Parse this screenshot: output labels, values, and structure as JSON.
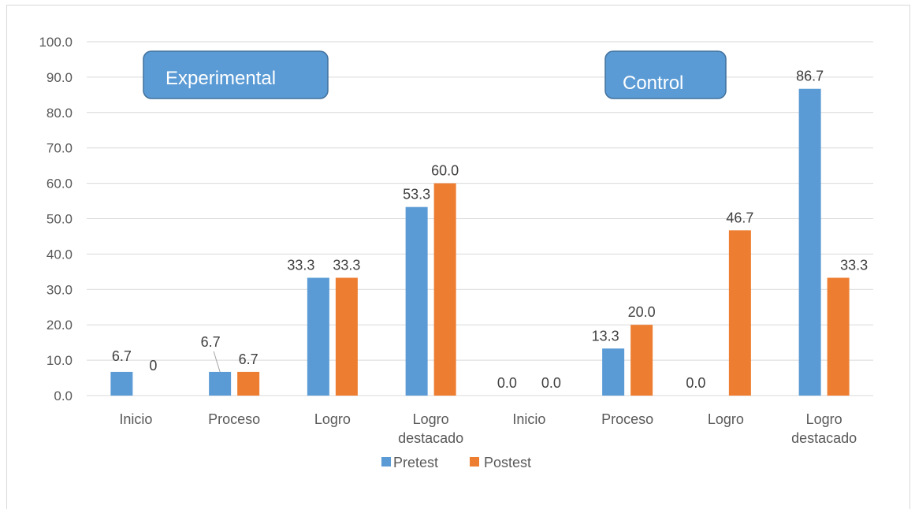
{
  "chart_data": {
    "type": "bar",
    "categories": [
      "Inicio",
      "Proceso",
      "Logro",
      "Logro destacado",
      "Inicio",
      "Proceso",
      "Logro",
      "Logro destacado"
    ],
    "category_lines": [
      [
        "Inicio"
      ],
      [
        "Proceso"
      ],
      [
        "Logro"
      ],
      [
        "Logro",
        "destacado"
      ],
      [
        "Inicio"
      ],
      [
        "Proceso"
      ],
      [
        "Logro"
      ],
      [
        "Logro",
        "destacado"
      ]
    ],
    "series": [
      {
        "name": "Pretest",
        "color": "#5b9bd5",
        "values": [
          6.7,
          6.7,
          33.3,
          53.3,
          0.0,
          13.3,
          0.0,
          86.7
        ],
        "labels": [
          "6.7",
          "6.7",
          "33.3",
          "53.3",
          "0.0",
          "13.3",
          "0.0",
          "86.7"
        ]
      },
      {
        "name": "Postest",
        "color": "#ed7d31",
        "values": [
          0,
          6.7,
          33.3,
          60.0,
          0.0,
          20.0,
          46.7,
          33.3
        ],
        "labels": [
          "0",
          "6.7",
          "33.3",
          "60.0",
          "0.0",
          "20.0",
          "46.7",
          "33.3"
        ]
      }
    ],
    "ylim": [
      0,
      100
    ],
    "yticks": [
      "0.0",
      "10.0",
      "20.0",
      "30.0",
      "40.0",
      "50.0",
      "60.0",
      "70.0",
      "80.0",
      "90.0",
      "100.0"
    ],
    "grid": true,
    "legend_position": "bottom",
    "annotations": [
      "Experimental",
      "Control"
    ],
    "annotation_color": "#5b9bd5",
    "xlabel": "",
    "ylabel": "",
    "title": ""
  }
}
